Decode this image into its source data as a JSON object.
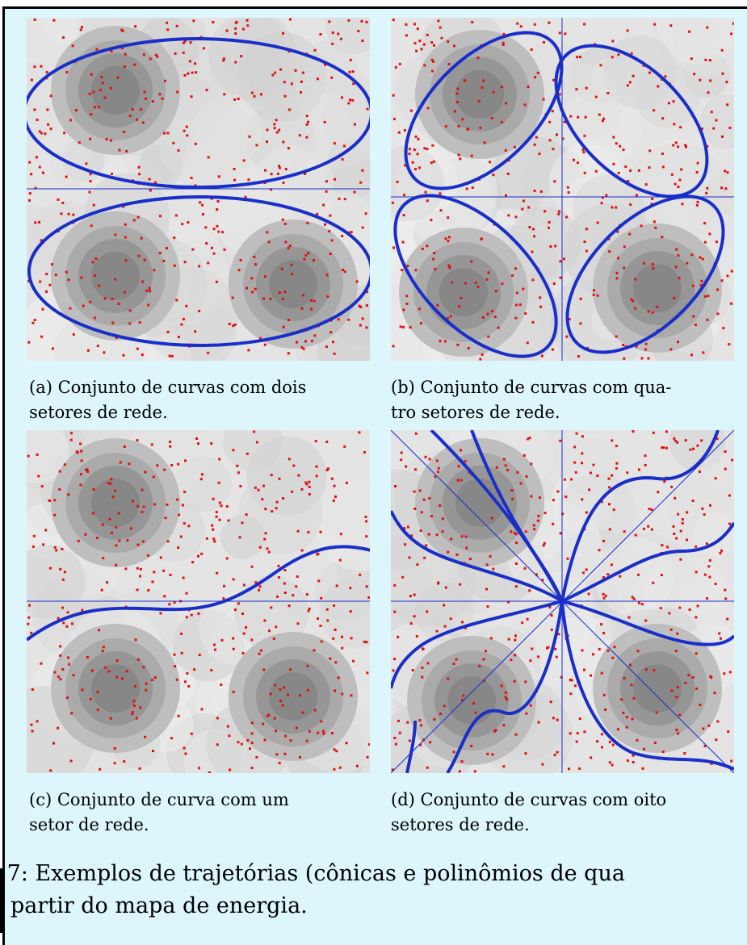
{
  "figure": {
    "panels": [
      {
        "id": "a",
        "caption_line1": "(a) Conjunto de curvas com dois",
        "caption_line2": "setores de rede.",
        "network_sectors": 2
      },
      {
        "id": "b",
        "caption_line1": "(b) Conjunto de curvas com qua-",
        "caption_line2": "tro setores de rede.",
        "network_sectors": 4
      },
      {
        "id": "c",
        "caption_line1": "(c) Conjunto de curva com um",
        "caption_line2": "setor de rede.",
        "network_sectors": 1
      },
      {
        "id": "d",
        "caption_line1": "(d) Conjunto de curvas com oito",
        "caption_line2": "setores de rede.",
        "network_sectors": 8
      }
    ],
    "main_caption_line1": ".7: Exemplos de trajetórias (cônicas e polinômios de qua",
    "main_caption_line2": "partir do mapa de energia."
  },
  "colors": {
    "background": "#dcf6fb",
    "curve": "#1a2ec8",
    "axis": "#1a2ec8",
    "points": "#e01010",
    "energy_low": "#8a8a8a",
    "energy_high": "#e6e6e6"
  }
}
